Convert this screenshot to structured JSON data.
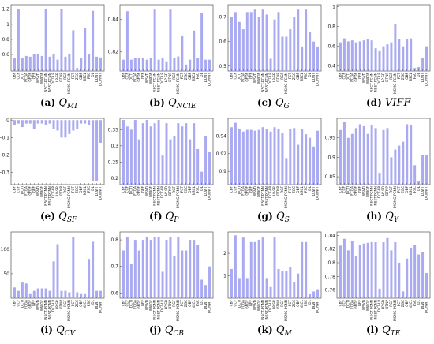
{
  "figure": {
    "bar_color": "#a9aaf2",
    "frame_color": "#555555"
  },
  "chart_data": [
    {
      "type": "bar",
      "caption": {
        "letter": "(a)",
        "symbol": "Q",
        "subscript": "MI"
      },
      "categories": [
        "CBF",
        "CCF",
        "DCTI",
        "FCGA",
        "GFDF",
        "GFF",
        "MSVD",
        "MWGF",
        "NSCT-PCNN",
        "NSST-PCNN",
        "DCT-LP",
        "LP-SR",
        "DTNP",
        "RGF",
        "MSMG-PCNN",
        "FCT",
        "ZGC",
        "OBF",
        "NSCL",
        "FSC",
        "DL",
        "DLWT",
        "DCIRWT"
      ],
      "values": [
        0.55,
        1.2,
        0.55,
        0.58,
        0.57,
        0.6,
        0.6,
        0.58,
        1.2,
        0.57,
        0.6,
        0.53,
        1.2,
        0.57,
        0.6,
        0.92,
        0.42,
        0.55,
        0.95,
        0.6,
        1.18,
        0.57,
        0.56
      ],
      "yticks": [
        0.6,
        0.8,
        1.0,
        1.2
      ],
      "ytick_labels": [
        "0.6",
        "0.8",
        "1",
        "1.2"
      ],
      "ylim": [
        0.38,
        1.26
      ]
    },
    {
      "type": "bar",
      "caption": {
        "letter": "(b)",
        "symbol": "Q",
        "subscript": "NCIE"
      },
      "categories": [
        "CBF",
        "CCF",
        "DCTI",
        "FCGA",
        "GFDF",
        "GFF",
        "MSVD",
        "MWGF",
        "NSCT-PCNN",
        "NSST-PCNN",
        "DCT-LP",
        "LP-SR",
        "DTNP",
        "RGF",
        "MSMG-PCNN",
        "FCT",
        "ZGC",
        "OBF",
        "NSCL",
        "FSC",
        "DL",
        "DLWT",
        "DCIRWT"
      ],
      "values": [
        0.815,
        0.845,
        0.815,
        0.816,
        0.816,
        0.816,
        0.815,
        0.816,
        0.846,
        0.815,
        0.816,
        0.814,
        0.846,
        0.816,
        0.817,
        0.83,
        0.812,
        0.815,
        0.833,
        0.816,
        0.844,
        0.815,
        0.815
      ],
      "yticks": [
        0.82,
        0.84
      ],
      "ytick_labels": [
        "0.82",
        "0.84"
      ],
      "ylim": [
        0.808,
        0.849
      ]
    },
    {
      "type": "bar",
      "caption": {
        "letter": "(c)",
        "symbol": "Q",
        "subscript": "G"
      },
      "categories": [
        "CBF",
        "CCF",
        "DCTI",
        "FCGA",
        "GFDF",
        "GFF",
        "MSVD",
        "MWGF",
        "NSCT-PCNN",
        "NSST-PCNN",
        "DCT-LP",
        "LP-SR",
        "DTNP",
        "RGF",
        "MSMG-PCNN",
        "FCT",
        "ZGC",
        "OBF",
        "NSCL",
        "FSC",
        "DL",
        "DLWT",
        "DCIRWT"
      ],
      "values": [
        0.7,
        0.72,
        0.68,
        0.65,
        0.72,
        0.72,
        0.73,
        0.7,
        0.73,
        0.71,
        0.53,
        0.69,
        0.72,
        0.62,
        0.62,
        0.65,
        0.7,
        0.73,
        0.58,
        0.73,
        0.64,
        0.6,
        0.58
      ],
      "yticks": [
        0.5,
        0.6,
        0.7
      ],
      "ytick_labels": [
        "0.5",
        "0.6",
        "0.7"
      ],
      "ylim": [
        0.48,
        0.75
      ]
    },
    {
      "type": "bar",
      "caption": {
        "letter": "(d)",
        "symbol": "VIFF",
        "subscript": ""
      },
      "categories": [
        "CBF",
        "CCF",
        "DCTI",
        "FCGA",
        "GFDF",
        "GFF",
        "MSVD",
        "MWGF",
        "NSCT-PCNN",
        "NSST-PCNN",
        "DCT-LP",
        "LP-SR",
        "DTNP",
        "RGF",
        "MSMG-PCNN",
        "FCT",
        "ZGC",
        "OBF",
        "NSCL",
        "FSC",
        "DL",
        "DLWT",
        "DCIRWT"
      ],
      "values": [
        0.64,
        0.68,
        0.65,
        0.66,
        0.64,
        0.65,
        0.66,
        0.67,
        0.66,
        0.58,
        0.55,
        0.6,
        0.62,
        0.64,
        0.82,
        0.67,
        0.6,
        0.67,
        0.68,
        0.38,
        0.39,
        0.48,
        0.6
      ],
      "yticks": [
        0.4,
        0.6,
        0.8,
        1.0
      ],
      "ytick_labels": [
        "0.4",
        "0.6",
        "0.8",
        "1"
      ],
      "ylim": [
        0.35,
        1.02
      ]
    },
    {
      "type": "bar",
      "caption": {
        "letter": "(e)",
        "symbol": "Q",
        "subscript": "SF"
      },
      "categories": [
        "CBF",
        "CCF",
        "DCTI",
        "FCGA",
        "GFDF",
        "GFF",
        "MSVD",
        "MWGF",
        "NSCT-PCNN",
        "NSST-PCNN",
        "DCT-LP",
        "LP-SR",
        "DTNP",
        "RGF",
        "MSMG-PCNN",
        "FCT",
        "ZGC",
        "OBF",
        "NSCL",
        "FSC",
        "DL",
        "DLWT",
        "DCIRWT"
      ],
      "values": [
        -0.03,
        -0.02,
        -0.04,
        -0.02,
        -0.02,
        -0.05,
        -0.02,
        -0.02,
        -0.03,
        -0.02,
        -0.05,
        -0.06,
        -0.1,
        -0.1,
        -0.08,
        -0.06,
        -0.05,
        -0.02,
        -0.02,
        -0.03,
        -0.35,
        -0.35,
        -0.13
      ],
      "yticks": [
        0,
        -0.1,
        -0.2,
        -0.3
      ],
      "ytick_labels": [
        "0",
        "−0.1",
        "−0.2",
        "−0.3"
      ],
      "ylim": [
        -0.37,
        0.01
      ]
    },
    {
      "type": "bar",
      "caption": {
        "letter": "(f)",
        "symbol": "Q",
        "subscript": "P"
      },
      "categories": [
        "CBF",
        "CCF",
        "DCTI",
        "FCGA",
        "GFDF",
        "GFF",
        "MSVD",
        "MWGF",
        "NSCT-PCNN",
        "NSST-PCNN",
        "DCT-LP",
        "LP-SR",
        "DTNP",
        "RGF",
        "MSMG-PCNN",
        "FCT",
        "ZGC",
        "OBF",
        "NSCL",
        "FSC",
        "DL",
        "DLWT",
        "DCIRWT"
      ],
      "values": [
        0.38,
        0.36,
        0.35,
        0.38,
        0.32,
        0.37,
        0.38,
        0.36,
        0.37,
        0.38,
        0.27,
        0.37,
        0.32,
        0.33,
        0.37,
        0.36,
        0.37,
        0.32,
        0.37,
        0.29,
        0.22,
        0.33,
        0.28
      ],
      "yticks": [
        0.2,
        0.25,
        0.3,
        0.35
      ],
      "ytick_labels": [
        "0.2",
        "0.25",
        "0.3",
        "0.35"
      ],
      "ylim": [
        0.18,
        0.385
      ]
    },
    {
      "type": "bar",
      "caption": {
        "letter": "(g)",
        "symbol": "Q",
        "subscript": "S"
      },
      "categories": [
        "CBF",
        "CCF",
        "DCTI",
        "FCGA",
        "GFDF",
        "GFF",
        "MSVD",
        "MWGF",
        "NSCT-PCNN",
        "NSST-PCNN",
        "DCT-LP",
        "LP-SR",
        "DTNP",
        "RGF",
        "MSMG-PCNN",
        "FCT",
        "ZGC",
        "OBF",
        "NSCL",
        "FSC",
        "DL",
        "DLWT",
        "DCIRWT"
      ],
      "values": [
        0.95,
        0.955,
        0.948,
        0.945,
        0.947,
        0.947,
        0.946,
        0.947,
        0.95,
        0.948,
        0.945,
        0.95,
        0.948,
        0.943,
        0.915,
        0.948,
        0.949,
        0.93,
        0.948,
        0.942,
        0.938,
        0.928,
        0.946
      ],
      "yticks": [
        0.9,
        0.92,
        0.94
      ],
      "ytick_labels": [
        "0.9",
        "0.92",
        "0.94"
      ],
      "ylim": [
        0.885,
        0.96
      ]
    },
    {
      "type": "bar",
      "caption": {
        "letter": "(h)",
        "symbol": "Q",
        "subscript": "Y"
      },
      "categories": [
        "CBF",
        "CCF",
        "DCTI",
        "FCGA",
        "GFDF",
        "GFF",
        "MSVD",
        "MWGF",
        "NSCT-PCNN",
        "NSST-PCNN",
        "DCT-LP",
        "LP-SR",
        "DTNP",
        "RGF",
        "MSMG-PCNN",
        "FCT",
        "ZGC",
        "OBF",
        "NSCL",
        "FSC",
        "DL",
        "DLWT",
        "DCIRWT"
      ],
      "values": [
        0.97,
        0.99,
        0.95,
        0.96,
        0.975,
        0.985,
        0.98,
        0.96,
        0.983,
        0.975,
        0.86,
        0.97,
        0.975,
        0.9,
        0.92,
        0.93,
        0.94,
        0.985,
        0.983,
        0.88,
        0.84,
        0.905,
        0.905
      ],
      "yticks": [
        0.85,
        0.9,
        0.95
      ],
      "ytick_labels": [
        "0.85",
        "0.9",
        "0.95"
      ],
      "ylim": [
        0.83,
        1.0
      ]
    },
    {
      "type": "bar",
      "caption": {
        "letter": "(i)",
        "symbol": "Q",
        "subscript": "CV"
      },
      "categories": [
        "CBF",
        "CCF",
        "DCTI",
        "FCGA",
        "GFDF",
        "GFF",
        "MSVD",
        "MWGF",
        "NSCT-PCNN",
        "NSST-PCNN",
        "DCT-LP",
        "LP-SR",
        "DTNP",
        "RGF",
        "MSMG-PCNN",
        "FCT",
        "ZGC",
        "OBF",
        "NSCL",
        "FSC",
        "DL",
        "DLWT",
        "DCIRWT"
      ],
      "values": [
        22,
        15,
        32,
        30,
        10,
        15,
        20,
        20,
        20,
        15,
        75,
        110,
        15,
        15,
        12,
        125,
        12,
        10,
        10,
        80,
        115,
        15,
        15
      ],
      "yticks": [
        50,
        100
      ],
      "ytick_labels": [
        "50",
        "100"
      ],
      "ylim": [
        0,
        135
      ]
    },
    {
      "type": "bar",
      "caption": {
        "letter": "(j)",
        "symbol": "Q",
        "subscript": "CB"
      },
      "categories": [
        "CBF",
        "CCF",
        "DCTI",
        "FCGA",
        "GFDF",
        "GFF",
        "MSVD",
        "MWGF",
        "NSCT-PCNN",
        "NSST-PCNN",
        "DCT-LP",
        "LP-SR",
        "DTNP",
        "RGF",
        "MSMG-PCNN",
        "FCT",
        "ZGC",
        "OBF",
        "NSCL",
        "FSC",
        "DL",
        "DLWT",
        "DCIRWT"
      ],
      "values": [
        0.76,
        0.81,
        0.71,
        0.8,
        0.76,
        0.8,
        0.81,
        0.8,
        0.81,
        0.81,
        0.68,
        0.8,
        0.81,
        0.74,
        0.81,
        0.76,
        0.76,
        0.8,
        0.8,
        0.78,
        0.65,
        0.63,
        0.7
      ],
      "yticks": [
        0.6,
        0.7,
        0.8
      ],
      "ytick_labels": [
        "0.6",
        "0.7",
        "0.8"
      ],
      "ylim": [
        0.58,
        0.83
      ]
    },
    {
      "type": "bar",
      "caption": {
        "letter": "(k)",
        "symbol": "Q",
        "subscript": "M"
      },
      "categories": [
        "CBF",
        "CCF",
        "DCTI",
        "FCGA",
        "GFDF",
        "GFF",
        "MSVD",
        "MWGF",
        "NSCT-PCNN",
        "NSST-PCNN",
        "DCT-LP",
        "LP-SR",
        "DTNP",
        "RGF",
        "MSMG-PCNN",
        "FCT",
        "ZGC",
        "OBF",
        "NSCL",
        "FSC",
        "DL",
        "DLWT",
        "DCIRWT"
      ],
      "values": [
        1.3,
        2.8,
        0.9,
        2.7,
        0.9,
        2.5,
        2.5,
        2.6,
        2.7,
        0.9,
        0.5,
        2.7,
        1.3,
        1.2,
        1.2,
        1.4,
        0.7,
        1.1,
        2.5,
        2.5,
        0.2,
        0.3,
        0.4
      ],
      "yticks": [
        1,
        2
      ],
      "ytick_labels": [
        "1",
        "2"
      ],
      "ylim": [
        0,
        2.95
      ]
    },
    {
      "type": "bar",
      "caption": {
        "letter": "(l)",
        "symbol": "Q",
        "subscript": "TE"
      },
      "categories": [
        "CBF",
        "CCF",
        "DCTI",
        "FCGA",
        "GFDF",
        "GFF",
        "MSVD",
        "MWGF",
        "NSCT-PCNN",
        "NSST-PCNN",
        "DCT-LP",
        "LP-SR",
        "DTNP",
        "RGF",
        "MSMG-PCNN",
        "FCT",
        "ZGC",
        "OBF",
        "NSCL",
        "FSC",
        "DL",
        "DLWT",
        "DCIRWT"
      ],
      "values": [
        0.825,
        0.835,
        0.818,
        0.832,
        0.81,
        0.826,
        0.828,
        0.829,
        0.83,
        0.83,
        0.762,
        0.83,
        0.836,
        0.818,
        0.83,
        0.8,
        0.758,
        0.806,
        0.822,
        0.826,
        0.812,
        0.815,
        0.785
      ],
      "yticks": [
        0.76,
        0.78,
        0.8,
        0.82,
        0.84
      ],
      "ytick_labels": [
        "0.76",
        "0.78",
        "0.8",
        "0.82",
        "0.84"
      ],
      "ylim": [
        0.748,
        0.845
      ]
    }
  ]
}
